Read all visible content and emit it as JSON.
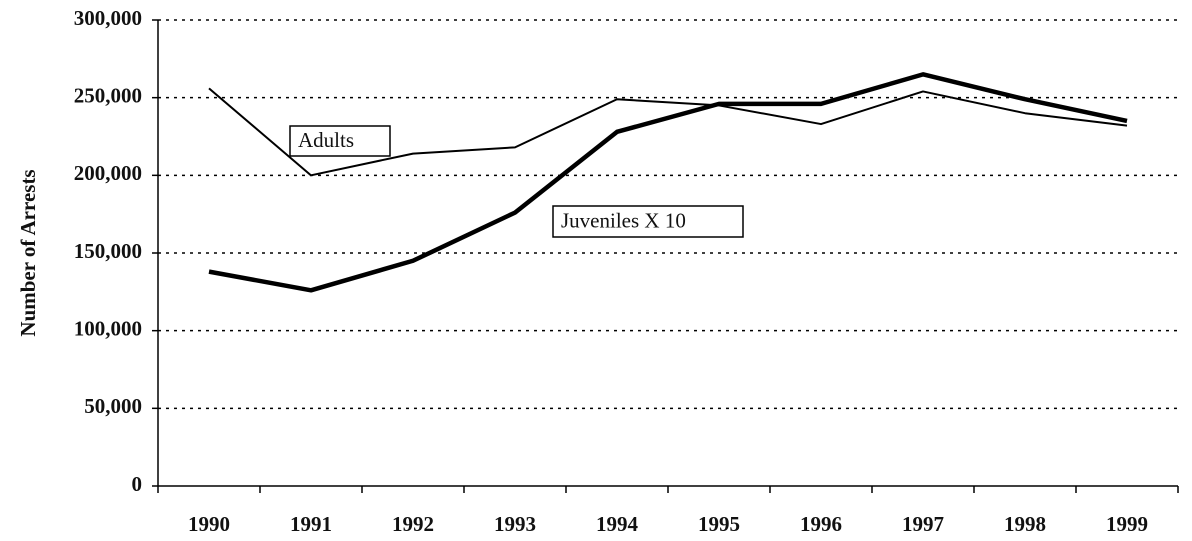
{
  "chart_data": {
    "type": "line",
    "y_label": "Number of Arrests",
    "categories": [
      "1990",
      "1991",
      "1992",
      "1993",
      "1994",
      "1995",
      "1996",
      "1997",
      "1998",
      "1999"
    ],
    "series": [
      {
        "name": "Adults",
        "color": "#000000",
        "values": [
          256000,
          200000,
          214000,
          218000,
          249000,
          245000,
          233000,
          254000,
          240000,
          232000
        ]
      },
      {
        "name": "Juveniles X 10",
        "color": "#000000",
        "values": [
          138000,
          126000,
          145000,
          176000,
          228000,
          246000,
          246000,
          265000,
          249000,
          235000
        ]
      }
    ],
    "ylim": [
      0,
      300000
    ],
    "yticks": [
      0,
      {
        "value": 50000,
        "label": "50,000"
      },
      {
        "value": 100000,
        "label": "100,000"
      },
      {
        "value": 150000,
        "label": "150,000"
      },
      {
        "value": 200000,
        "label": "200,000"
      },
      {
        "value": 250000,
        "label": "250,000"
      },
      {
        "value": 300000,
        "label": "300,000"
      }
    ],
    "grid": true
  }
}
